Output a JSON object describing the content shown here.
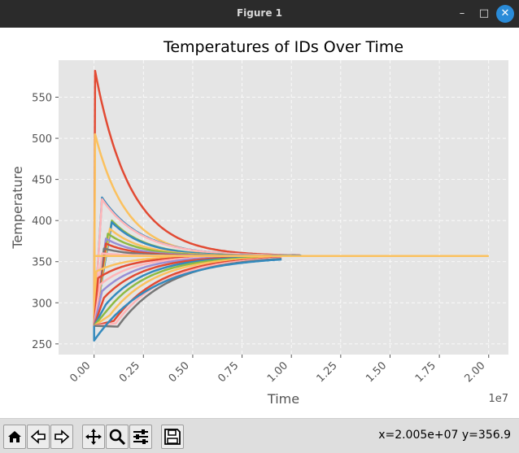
{
  "window": {
    "title": "Figure 1",
    "minimize": "–",
    "maximize": "□",
    "close": "✕"
  },
  "chart_data": {
    "type": "line",
    "title": "Temperatures of IDs Over Time",
    "xlabel": "Time",
    "ylabel": "Temperature",
    "x_offset_label": "1e7",
    "xlim": [
      -0.18,
      2.1
    ],
    "ylim": [
      237,
      595
    ],
    "x_ticks": [
      0.0,
      0.25,
      0.5,
      0.75,
      1.0,
      1.25,
      1.5,
      1.75,
      2.0
    ],
    "x_tick_labels": [
      "0.00",
      "0.25",
      "0.50",
      "0.75",
      "1.00",
      "1.25",
      "1.50",
      "1.75",
      "2.00"
    ],
    "y_ticks": [
      250,
      300,
      350,
      400,
      450,
      500,
      550
    ],
    "y_tick_labels": [
      "250",
      "300",
      "350",
      "400",
      "450",
      "500",
      "550"
    ],
    "grid": true,
    "background": "#e5e5e5",
    "series": [
      {
        "color": "#E24A33",
        "peak": 582,
        "t_peak": 0.005,
        "tau": 0.18,
        "end": 1.05
      },
      {
        "color": "#FBC15E",
        "peak": 505,
        "t_peak": 0.005,
        "tau": 0.16,
        "end": 1.05
      },
      {
        "color": "#348ABD",
        "peak": 428,
        "t_peak": 0.04,
        "tau": 0.2,
        "end": 1.05
      },
      {
        "color": "#FFB5B8",
        "peak": 426,
        "t_peak": 0.04,
        "tau": 0.2,
        "end": 1.0
      },
      {
        "color": "#8EBA42",
        "peak": 400,
        "t_peak": 0.09,
        "tau": 0.17,
        "end": 1.0
      },
      {
        "color": "#348ABD",
        "peak": 398,
        "t_peak": 0.09,
        "tau": 0.17,
        "end": 1.0
      },
      {
        "color": "#FBC15E",
        "peak": 390,
        "t_peak": 0.08,
        "tau": 0.16,
        "end": 0.9
      },
      {
        "color": "#8EBA42",
        "peak": 384,
        "t_peak": 0.07,
        "tau": 0.16,
        "end": 0.9
      },
      {
        "color": "#988ED5",
        "peak": 378,
        "t_peak": 0.06,
        "tau": 0.15,
        "end": 0.9
      },
      {
        "color": "#E24A33",
        "peak": 372,
        "t_peak": 0.06,
        "tau": 0.14,
        "end": 0.9
      },
      {
        "color": "#777777",
        "peak": 366,
        "t_peak": 0.05,
        "tau": 0.14,
        "end": 0.9
      },
      {
        "color": "#FFB5B8",
        "peak": 360,
        "t_peak": 0.04,
        "tau": 0.14,
        "end": 0.9
      },
      {
        "color": "#FBC15E",
        "min": 338,
        "t_min": 0.01,
        "tau": 0.16,
        "end": 0.9
      },
      {
        "color": "#E24A33",
        "min": 330,
        "t_min": 0.02,
        "tau": 0.17,
        "end": 0.9
      },
      {
        "color": "#FFB5B8",
        "min": 322,
        "t_min": 0.03,
        "tau": 0.18,
        "end": 0.9
      },
      {
        "color": "#988ED5",
        "min": 314,
        "t_min": 0.04,
        "tau": 0.19,
        "end": 0.9
      },
      {
        "color": "#E24A33",
        "min": 306,
        "t_min": 0.05,
        "tau": 0.2,
        "end": 0.9
      },
      {
        "color": "#348ABD",
        "min": 298,
        "t_min": 0.06,
        "tau": 0.21,
        "end": 0.9
      },
      {
        "color": "#8EBA42",
        "min": 292,
        "t_min": 0.07,
        "tau": 0.22,
        "end": 0.9
      },
      {
        "color": "#FBC15E",
        "min": 285,
        "t_min": 0.08,
        "tau": 0.23,
        "end": 0.9
      },
      {
        "color": "#E24A33",
        "min": 278,
        "t_min": 0.1,
        "tau": 0.24,
        "end": 0.95
      },
      {
        "color": "#FFB5B8",
        "min": 275,
        "t_min": 0.11,
        "tau": 0.25,
        "end": 0.95
      },
      {
        "color": "#777777",
        "min": 271,
        "t_min": 0.12,
        "tau": 0.26,
        "end": 0.95
      },
      {
        "color": "#348ABD",
        "min": 254,
        "t_min": 0.0,
        "tau": 0.3,
        "end": 0.95
      },
      {
        "color": "#8EBA42",
        "flat": 357,
        "end": 2.0
      },
      {
        "color": "#FBC15E",
        "flat": 357,
        "end": 2.0
      }
    ]
  },
  "toolbar": {
    "buttons": [
      "home",
      "back",
      "forward",
      "pan",
      "zoom",
      "configure-subplots",
      "save"
    ],
    "coords": "x=2.005e+07 y=356.9"
  }
}
